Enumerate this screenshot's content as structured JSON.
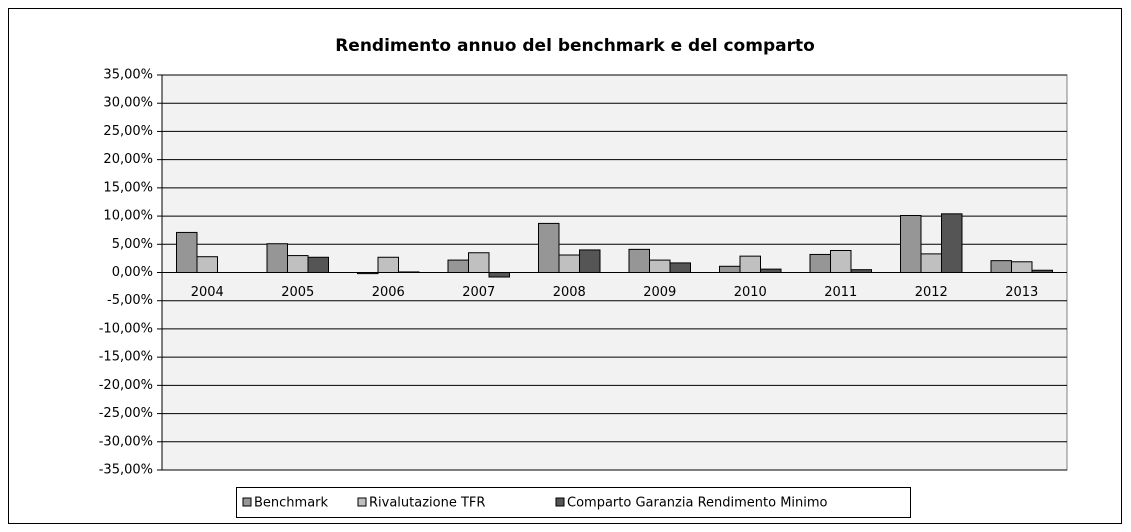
{
  "chart_data": {
    "type": "bar",
    "title": "Rendimento annuo del benchmark e del comparto",
    "categories": [
      "2004",
      "2005",
      "2006",
      "2007",
      "2008",
      "2009",
      "2010",
      "2011",
      "2012",
      "2013"
    ],
    "series": [
      {
        "name": "Benchmark",
        "color": "#969696",
        "values": [
          7.1,
          5.1,
          -0.2,
          2.2,
          8.7,
          4.1,
          1.1,
          3.2,
          10.1,
          2.1
        ]
      },
      {
        "name": "Rivalutazione TFR",
        "color": "#c0c0c0",
        "values": [
          2.8,
          3.0,
          2.7,
          3.5,
          3.1,
          2.2,
          2.9,
          3.9,
          3.3,
          1.9
        ]
      },
      {
        "name": "Comparto Garanzia Rendimento Minimo",
        "color": "#555555",
        "values": [
          null,
          2.7,
          0.1,
          -0.8,
          4.0,
          1.7,
          0.6,
          0.5,
          10.4,
          0.4
        ]
      }
    ],
    "ylim": [
      -35,
      35
    ],
    "yticks": [
      {
        "value": 35,
        "label": "35,00%"
      },
      {
        "value": 30,
        "label": "30,00%"
      },
      {
        "value": 25,
        "label": "25,00%"
      },
      {
        "value": 20,
        "label": "20,00%"
      },
      {
        "value": 15,
        "label": "15,00%"
      },
      {
        "value": 10,
        "label": "10,00%"
      },
      {
        "value": 5,
        "label": "5,00%"
      },
      {
        "value": 0,
        "label": "0,00%"
      },
      {
        "value": -5,
        "label": "-5,00%"
      },
      {
        "value": -10,
        "label": "-10,00%"
      },
      {
        "value": -15,
        "label": "-15,00%"
      },
      {
        "value": -20,
        "label": "-20,00%"
      },
      {
        "value": -25,
        "label": "-25,00%"
      },
      {
        "value": -30,
        "label": "-30,00%"
      },
      {
        "value": -35,
        "label": "-35,00%"
      }
    ],
    "grid": true,
    "legend": "bottom"
  }
}
